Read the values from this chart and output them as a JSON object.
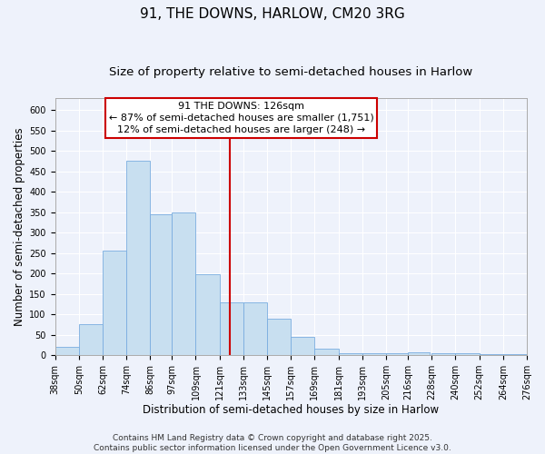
{
  "title": "91, THE DOWNS, HARLOW, CM20 3RG",
  "subtitle": "Size of property relative to semi-detached houses in Harlow",
  "xlabel": "Distribution of semi-detached houses by size in Harlow",
  "ylabel": "Number of semi-detached properties",
  "bar_left_edges": [
    38,
    50,
    62,
    74,
    86,
    97,
    109,
    121,
    133,
    145,
    157,
    169,
    181,
    193,
    205,
    216,
    228,
    240,
    252,
    264
  ],
  "bar_widths": [
    12,
    12,
    12,
    12,
    11,
    12,
    12,
    12,
    12,
    12,
    12,
    12,
    12,
    12,
    12,
    11,
    12,
    12,
    12,
    12
  ],
  "bar_heights": [
    20,
    75,
    255,
    475,
    345,
    348,
    198,
    128,
    128,
    90,
    45,
    15,
    5,
    5,
    5,
    8,
    5,
    5,
    2,
    2
  ],
  "bar_color": "#c8dff0",
  "bar_edge_color": "#7aade0",
  "vline_x": 126,
  "vline_color": "#cc0000",
  "annotation_title": "91 THE DOWNS: 126sqm",
  "annotation_line1": "← 87% of semi-detached houses are smaller (1,751)",
  "annotation_line2": "12% of semi-detached houses are larger (248) →",
  "annotation_box_facecolor": "#ffffff",
  "annotation_box_edge_color": "#cc0000",
  "xlim": [
    38,
    276
  ],
  "ylim": [
    0,
    630
  ],
  "xtick_labels": [
    "38sqm",
    "50sqm",
    "62sqm",
    "74sqm",
    "86sqm",
    "97sqm",
    "109sqm",
    "121sqm",
    "133sqm",
    "145sqm",
    "157sqm",
    "169sqm",
    "181sqm",
    "193sqm",
    "205sqm",
    "216sqm",
    "228sqm",
    "240sqm",
    "252sqm",
    "264sqm",
    "276sqm"
  ],
  "xtick_positions": [
    38,
    50,
    62,
    74,
    86,
    97,
    109,
    121,
    133,
    145,
    157,
    169,
    181,
    193,
    205,
    216,
    228,
    240,
    252,
    264,
    276
  ],
  "ytick_positions": [
    0,
    50,
    100,
    150,
    200,
    250,
    300,
    350,
    400,
    450,
    500,
    550,
    600
  ],
  "background_color": "#eef2fb",
  "plot_bg_color": "#eef2fb",
  "grid_color": "#ffffff",
  "footer_line1": "Contains HM Land Registry data © Crown copyright and database right 2025.",
  "footer_line2": "Contains public sector information licensed under the Open Government Licence v3.0.",
  "title_fontsize": 11,
  "subtitle_fontsize": 9.5,
  "axis_label_fontsize": 8.5,
  "tick_fontsize": 7,
  "annotation_title_fontsize": 8.5,
  "annotation_body_fontsize": 8,
  "footer_fontsize": 6.5
}
